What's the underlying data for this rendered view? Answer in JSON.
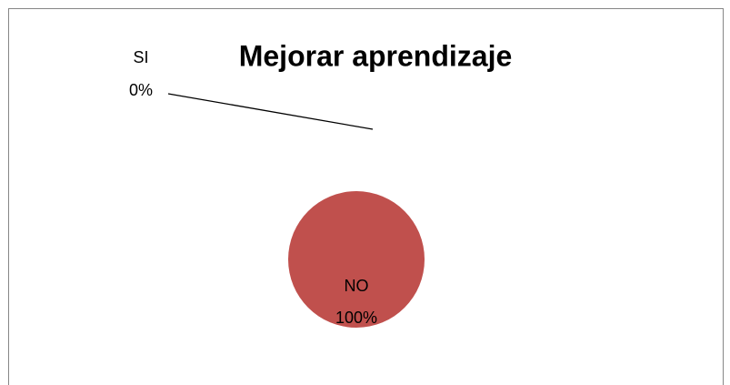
{
  "chart_data": {
    "type": "pie",
    "title": "Mejorar aprendizaje",
    "categories": [
      "SI",
      "NO"
    ],
    "values": [
      0,
      100
    ],
    "value_labels": [
      "0%",
      "100%"
    ],
    "colors": [
      "#4f81bd",
      "#c0504d"
    ]
  }
}
